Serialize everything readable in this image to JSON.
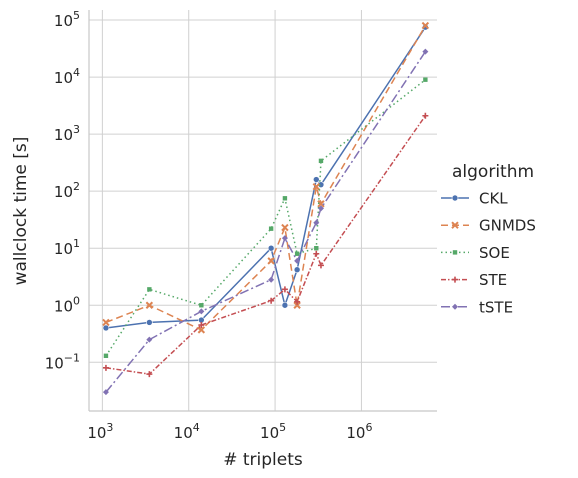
{
  "chart_data": {
    "type": "line",
    "xlabel": "# triplets",
    "ylabel": "wallclock time [s]",
    "xscale": "log",
    "yscale": "log",
    "xlim": [
      700,
      7500000
    ],
    "ylim": [
      0.014,
      150000
    ],
    "grid": true,
    "legend": {
      "title": "algorithm",
      "placement": "right"
    },
    "x_ticks": [
      {
        "base": "10",
        "exp": "3",
        "value": 1000
      },
      {
        "base": "10",
        "exp": "4",
        "value": 10000
      },
      {
        "base": "10",
        "exp": "5",
        "value": 100000
      },
      {
        "base": "10",
        "exp": "6",
        "value": 1000000
      }
    ],
    "y_ticks": [
      {
        "base": "10",
        "exp": "−1",
        "value": 0.1
      },
      {
        "base": "10",
        "exp": "0",
        "value": 1
      },
      {
        "base": "10",
        "exp": "1",
        "value": 10
      },
      {
        "base": "10",
        "exp": "2",
        "value": 100
      },
      {
        "base": "10",
        "exp": "3",
        "value": 1000
      },
      {
        "base": "10",
        "exp": "4",
        "value": 10000
      },
      {
        "base": "10",
        "exp": "5",
        "value": 100000
      }
    ],
    "series": [
      {
        "name": "CKL",
        "color": "#4c72b0",
        "dash": "",
        "marker": "circle",
        "x": [
          1100,
          3500,
          14000,
          90000,
          130000,
          180000,
          300000,
          340000,
          5500000
        ],
        "y": [
          0.4,
          0.5,
          0.55,
          10,
          1.0,
          4.2,
          160,
          130,
          75000
        ]
      },
      {
        "name": "GNMDS",
        "color": "#dd8452",
        "dash": "7,4",
        "marker": "x",
        "x": [
          1100,
          3500,
          14000,
          90000,
          130000,
          180000,
          300000,
          340000,
          5500000
        ],
        "y": [
          0.5,
          1.0,
          0.37,
          6.0,
          23,
          1.0,
          120,
          60,
          80000
        ]
      },
      {
        "name": "SOE",
        "color": "#55a868",
        "dash": "1.5,3",
        "marker": "square",
        "x": [
          1100,
          3500,
          14000,
          90000,
          130000,
          180000,
          300000,
          340000,
          5500000
        ],
        "y": [
          0.13,
          1.9,
          1.0,
          22,
          75,
          8.0,
          10,
          340,
          9000
        ]
      },
      {
        "name": "STE",
        "color": "#c44e52",
        "dash": "5,2,1.5,2",
        "marker": "plus",
        "x": [
          1100,
          3500,
          14000,
          90000,
          130000,
          180000,
          300000,
          340000,
          5500000
        ],
        "y": [
          0.08,
          0.062,
          0.45,
          1.2,
          1.9,
          1.15,
          8.0,
          5.0,
          2100
        ]
      },
      {
        "name": "tSTE",
        "color": "#8172b3",
        "dash": "9,3,2,3",
        "marker": "diamond",
        "x": [
          1100,
          3500,
          14000,
          90000,
          130000,
          180000,
          300000,
          340000,
          5500000
        ],
        "y": [
          0.03,
          0.25,
          0.78,
          2.8,
          15,
          6.0,
          28,
          50,
          28000
        ]
      }
    ]
  }
}
